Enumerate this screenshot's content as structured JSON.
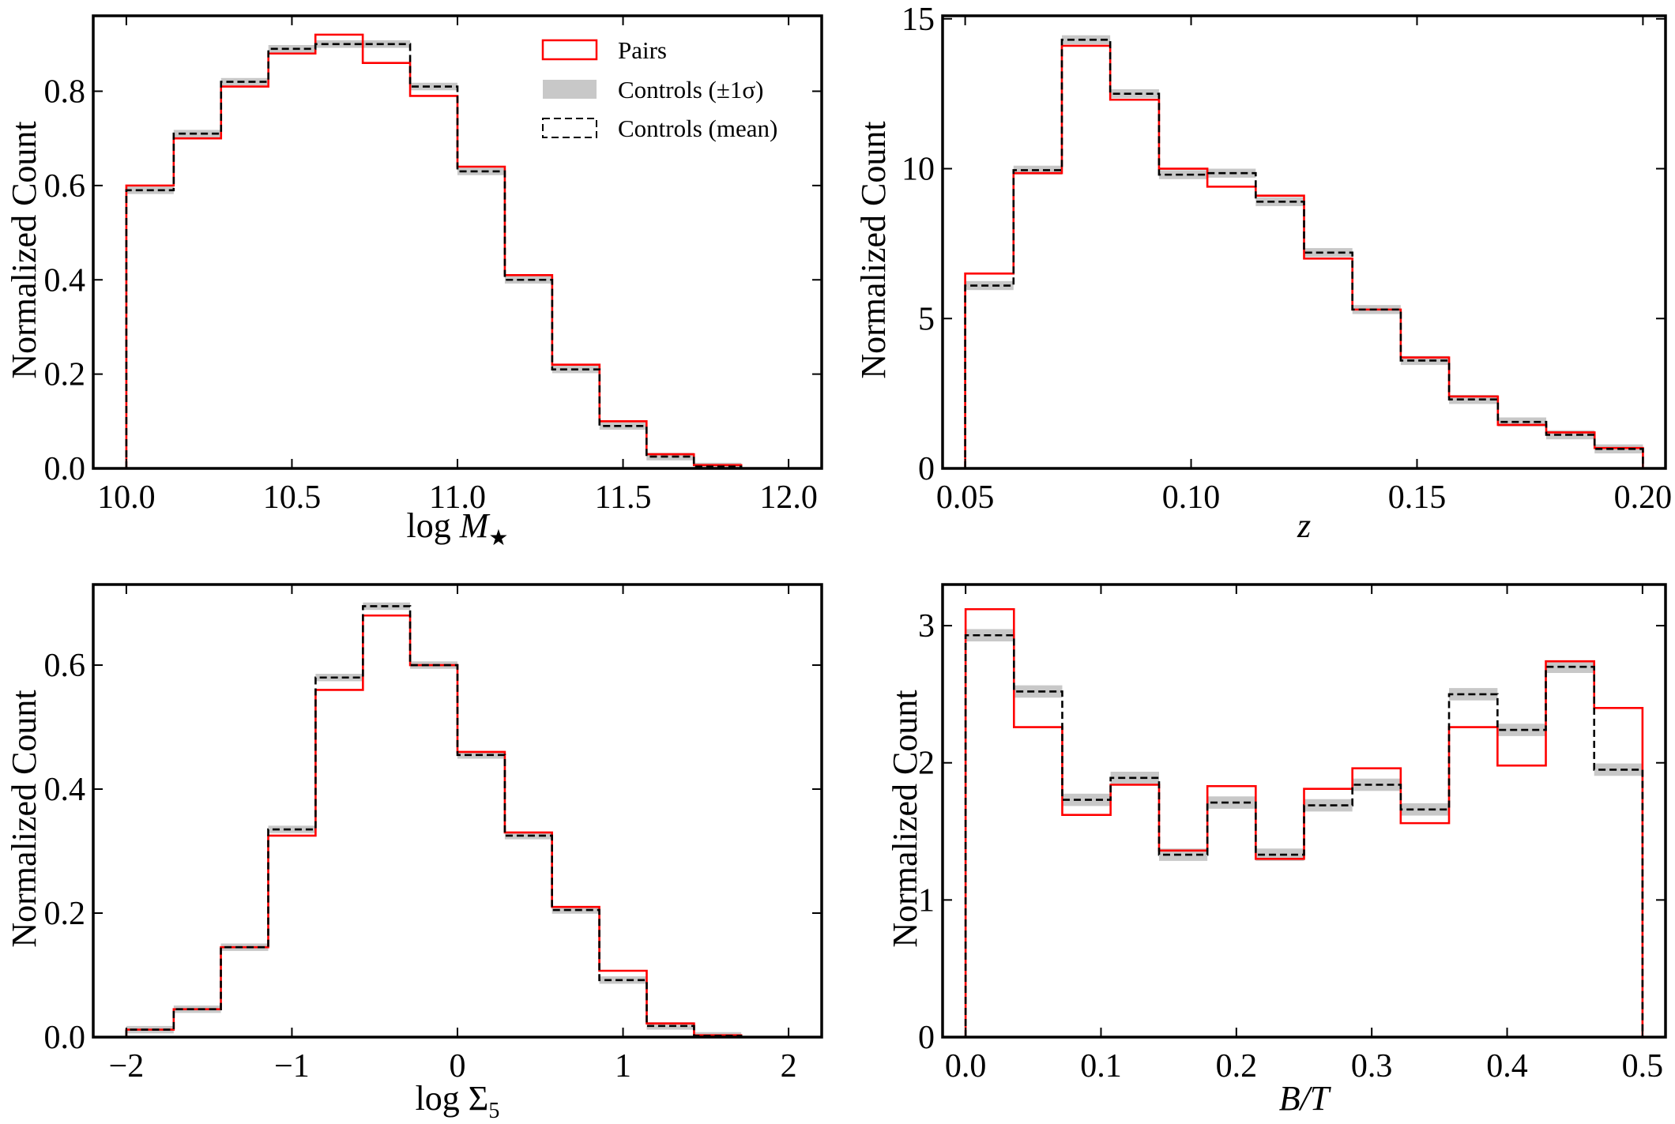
{
  "colors": {
    "pairs": "#ff0000",
    "controls_mean": "#000000",
    "controls_band": "#c8c8c8",
    "axes": "#000000"
  },
  "legend": {
    "pairs": "Pairs",
    "band": "Controls (±1σ)",
    "mean": "Controls (mean)",
    "position": "top-right of top-left panel"
  },
  "chart_data": [
    {
      "type": "step-histogram",
      "title": "",
      "xlabel_main": "log ",
      "xlabel_symbol": "M",
      "xlabel_sub": "★",
      "ylabel": "Normalized Count",
      "xlim": [
        9.9,
        12.1
      ],
      "ylim": [
        0,
        0.96
      ],
      "xticks": [
        10.0,
        10.5,
        11.0,
        11.5,
        12.0
      ],
      "xtick_labels": [
        "10.0",
        "10.5",
        "11.0",
        "11.5",
        "12.0"
      ],
      "yticks": [
        0,
        0.2,
        0.4,
        0.6,
        0.8
      ],
      "ytick_labels": [
        "0.0",
        "0.2",
        "0.4",
        "0.6",
        "0.8"
      ],
      "bin_edges": [
        10.0,
        10.143,
        10.286,
        10.429,
        10.571,
        10.714,
        10.857,
        11.0,
        11.143,
        11.286,
        11.429,
        11.571,
        11.714,
        11.857
      ],
      "series": [
        {
          "name": "Pairs",
          "values": [
            0.6,
            0.7,
            0.81,
            0.88,
            0.92,
            0.86,
            0.79,
            0.64,
            0.41,
            0.22,
            0.1,
            0.03,
            0.007
          ]
        },
        {
          "name": "Controls (mean)",
          "values": [
            0.59,
            0.71,
            0.82,
            0.89,
            0.9,
            0.9,
            0.81,
            0.63,
            0.4,
            0.21,
            0.09,
            0.025,
            0.004
          ]
        },
        {
          "name": "Controls (±1σ)",
          "halfwidth": 0.008
        }
      ]
    },
    {
      "type": "step-histogram",
      "title": "",
      "xlabel_symbol": "z",
      "ylabel": "Normalized Count",
      "xlim": [
        0.045,
        0.205
      ],
      "ylim": [
        0,
        15.1
      ],
      "xticks": [
        0.05,
        0.1,
        0.15,
        0.2
      ],
      "xtick_labels": [
        "0.05",
        "0.10",
        "0.15",
        "0.20"
      ],
      "yticks": [
        0,
        5,
        10,
        15
      ],
      "ytick_labels": [
        "0",
        "5",
        "10",
        "15"
      ],
      "bin_edges": [
        0.05,
        0.0607,
        0.0714,
        0.0821,
        0.0929,
        0.1036,
        0.1143,
        0.125,
        0.1357,
        0.1464,
        0.1571,
        0.1679,
        0.1786,
        0.1893,
        0.2
      ],
      "series": [
        {
          "name": "Pairs",
          "values": [
            6.5,
            9.85,
            14.1,
            12.3,
            10.0,
            9.4,
            9.1,
            7.0,
            5.3,
            3.7,
            2.4,
            1.45,
            1.2,
            0.68
          ]
        },
        {
          "name": "Controls (mean)",
          "values": [
            6.1,
            9.95,
            14.3,
            12.5,
            9.8,
            9.85,
            8.9,
            7.2,
            5.3,
            3.6,
            2.3,
            1.55,
            1.12,
            0.65
          ]
        },
        {
          "name": "Controls (±1σ)",
          "halfwidth": 0.15
        }
      ]
    },
    {
      "type": "step-histogram",
      "title": "",
      "xlabel_main": "log Σ",
      "xlabel_sub": "5",
      "ylabel": "Normalized Count",
      "xlim": [
        -2.2,
        2.2
      ],
      "ylim": [
        0,
        0.73
      ],
      "xticks": [
        -2,
        -1,
        0,
        1,
        2
      ],
      "xtick_labels": [
        "−2",
        "−1",
        "0",
        "1",
        "2"
      ],
      "yticks": [
        0,
        0.2,
        0.4,
        0.6
      ],
      "ytick_labels": [
        "0.0",
        "0.2",
        "0.4",
        "0.6"
      ],
      "bin_edges": [
        -2.0,
        -1.714,
        -1.429,
        -1.143,
        -0.857,
        -0.571,
        -0.286,
        0.0,
        0.286,
        0.571,
        0.857,
        1.143,
        1.429,
        1.714
      ],
      "series": [
        {
          "name": "Pairs",
          "values": [
            0.012,
            0.045,
            0.145,
            0.325,
            0.56,
            0.68,
            0.6,
            0.46,
            0.33,
            0.21,
            0.107,
            0.022,
            0.003
          ]
        },
        {
          "name": "Controls (mean)",
          "values": [
            0.012,
            0.045,
            0.145,
            0.335,
            0.58,
            0.695,
            0.6,
            0.455,
            0.325,
            0.205,
            0.092,
            0.018,
            0.002
          ]
        },
        {
          "name": "Controls (±1σ)",
          "halfwidth": 0.006
        }
      ]
    },
    {
      "type": "step-histogram",
      "title": "",
      "xlabel_symbol": "B/T",
      "ylabel": "Normalized Count",
      "xlim": [
        -0.017,
        0.517
      ],
      "ylim": [
        0,
        3.3
      ],
      "xticks": [
        0.0,
        0.1,
        0.2,
        0.3,
        0.4,
        0.5
      ],
      "xtick_labels": [
        "0.0",
        "0.1",
        "0.2",
        "0.3",
        "0.4",
        "0.5"
      ],
      "yticks": [
        0,
        1,
        2,
        3
      ],
      "ytick_labels": [
        "0",
        "1",
        "2",
        "3"
      ],
      "bin_edges": [
        0.0,
        0.0357,
        0.0714,
        0.1071,
        0.1429,
        0.1786,
        0.2143,
        0.25,
        0.2857,
        0.3214,
        0.3571,
        0.3929,
        0.4286,
        0.4643,
        0.5
      ],
      "series": [
        {
          "name": "Pairs",
          "values": [
            3.12,
            2.26,
            1.62,
            1.84,
            1.36,
            1.83,
            1.3,
            1.81,
            1.96,
            1.56,
            2.26,
            1.98,
            2.74,
            2.4
          ]
        },
        {
          "name": "Controls (mean)",
          "values": [
            2.93,
            2.52,
            1.73,
            1.89,
            1.33,
            1.71,
            1.33,
            1.69,
            1.84,
            1.66,
            2.5,
            2.24,
            2.7,
            1.95
          ]
        },
        {
          "name": "Controls (±1σ)",
          "halfwidth": 0.045
        }
      ]
    }
  ]
}
